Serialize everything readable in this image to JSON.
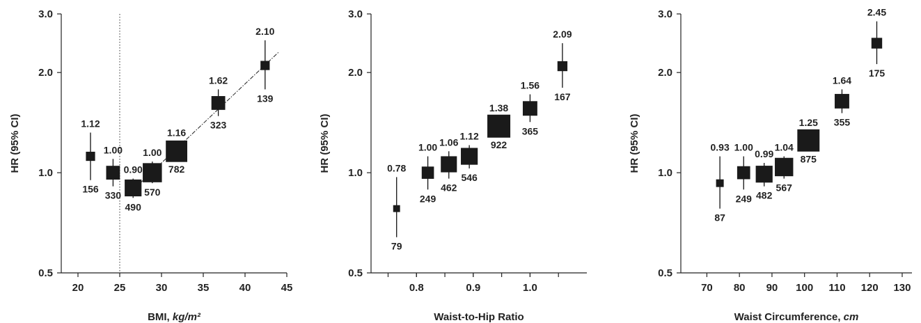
{
  "chart_data": [
    {
      "type": "scatter",
      "ylabel": "HR (95% CI)",
      "xlabel_main": "BMI, ",
      "xlabel_unit": "kg/m²",
      "xlim": [
        18,
        45
      ],
      "ylim": [
        0.5,
        3.0
      ],
      "yscale": "log",
      "yticks": [
        "3.0",
        "2.0",
        "1.0",
        "0.5"
      ],
      "xticks": [
        "20",
        "25",
        "30",
        "35",
        "40",
        "45"
      ],
      "reference_line_x": 25,
      "trend_line": {
        "x": [
          26,
          44
        ],
        "y": [
          0.86,
          2.3
        ]
      },
      "points": [
        {
          "x": 21.5,
          "hr": 1.12,
          "lo": 0.95,
          "hi": 1.32,
          "n": "156",
          "hr_label": "1.12",
          "size": 0.6
        },
        {
          "x": 24.2,
          "hr": 1.0,
          "lo": 0.91,
          "hi": 1.1,
          "n": "330",
          "hr_label": "1.00",
          "size": 0.9
        },
        {
          "x": 26.6,
          "hr": 0.9,
          "lo": 0.84,
          "hi": 0.96,
          "n": "490",
          "hr_label": "0.90",
          "size": 1.1
        },
        {
          "x": 28.9,
          "hr": 1.0,
          "lo": 0.93,
          "hi": 1.08,
          "n": "570",
          "hr_label": "1.00",
          "size": 1.25
        },
        {
          "x": 31.8,
          "hr": 1.16,
          "lo": 1.09,
          "hi": 1.24,
          "n": "782",
          "hr_label": "1.16",
          "size": 1.4
        },
        {
          "x": 36.8,
          "hr": 1.62,
          "lo": 1.48,
          "hi": 1.78,
          "n": "323",
          "hr_label": "1.62",
          "size": 0.9
        },
        {
          "x": 42.4,
          "hr": 2.1,
          "lo": 1.78,
          "hi": 2.5,
          "n": "139",
          "hr_label": "2.10",
          "size": 0.6
        }
      ]
    },
    {
      "type": "scatter",
      "ylabel": "HR (95% CI)",
      "xlabel_main": "Waist-to-Hip Ratio",
      "xlabel_unit": "",
      "xlim": [
        0.72,
        1.1
      ],
      "ylim": [
        0.5,
        3.0
      ],
      "yscale": "log",
      "yticks": [
        "3.0",
        "2.0",
        "1.0",
        "0.5"
      ],
      "xticks": [
        "0.8",
        "0.9",
        "1.0"
      ],
      "xtick_minor": [
        0.75,
        0.8,
        0.85,
        0.9,
        0.95,
        1.0,
        1.05
      ],
      "points": [
        {
          "x": 0.765,
          "hr": 0.78,
          "lo": 0.64,
          "hi": 0.97,
          "n": "79",
          "hr_label": "0.78",
          "size": 0.45
        },
        {
          "x": 0.82,
          "hr": 1.0,
          "lo": 0.89,
          "hi": 1.12,
          "n": "249",
          "hr_label": "1.00",
          "size": 0.8
        },
        {
          "x": 0.857,
          "hr": 1.06,
          "lo": 0.96,
          "hi": 1.16,
          "n": "462",
          "hr_label": "1.06",
          "size": 1.05
        },
        {
          "x": 0.893,
          "hr": 1.12,
          "lo": 1.03,
          "hi": 1.21,
          "n": "546",
          "hr_label": "1.12",
          "size": 1.1
        },
        {
          "x": 0.945,
          "hr": 1.38,
          "lo": 1.29,
          "hi": 1.47,
          "n": "922",
          "hr_label": "1.38",
          "size": 1.5
        },
        {
          "x": 1.0,
          "hr": 1.56,
          "lo": 1.42,
          "hi": 1.72,
          "n": "365",
          "hr_label": "1.56",
          "size": 0.95
        },
        {
          "x": 1.057,
          "hr": 2.09,
          "lo": 1.8,
          "hi": 2.45,
          "n": "167",
          "hr_label": "2.09",
          "size": 0.65
        }
      ]
    },
    {
      "type": "scatter",
      "ylabel": "HR (95% CI)",
      "xlabel_main": "Waist Circumference, ",
      "xlabel_unit": "cm",
      "xlim": [
        62,
        133
      ],
      "ylim": [
        0.5,
        3.0
      ],
      "yscale": "log",
      "yticks": [
        "3.0",
        "2.0",
        "1.0",
        "0.5"
      ],
      "xticks": [
        "70",
        "80",
        "90",
        "100",
        "110",
        "120",
        "130"
      ],
      "points": [
        {
          "x": 74,
          "hr": 0.93,
          "lo": 0.78,
          "hi": 1.12,
          "n": "87",
          "hr_label": "0.93",
          "size": 0.5
        },
        {
          "x": 81.3,
          "hr": 1.0,
          "lo": 0.89,
          "hi": 1.12,
          "n": "249",
          "hr_label": "1.00",
          "size": 0.85
        },
        {
          "x": 87.6,
          "hr": 0.99,
          "lo": 0.91,
          "hi": 1.07,
          "n": "482",
          "hr_label": "0.99",
          "size": 1.1
        },
        {
          "x": 93.7,
          "hr": 1.04,
          "lo": 0.96,
          "hi": 1.12,
          "n": "567",
          "hr_label": "1.04",
          "size": 1.2
        },
        {
          "x": 101.2,
          "hr": 1.25,
          "lo": 1.17,
          "hi": 1.33,
          "n": "875",
          "hr_label": "1.25",
          "size": 1.45
        },
        {
          "x": 111.5,
          "hr": 1.64,
          "lo": 1.51,
          "hi": 1.78,
          "n": "355",
          "hr_label": "1.64",
          "size": 0.95
        },
        {
          "x": 122.2,
          "hr": 2.45,
          "lo": 2.12,
          "hi": 2.85,
          "n": "175",
          "hr_label": "2.45",
          "size": 0.7
        }
      ]
    }
  ]
}
